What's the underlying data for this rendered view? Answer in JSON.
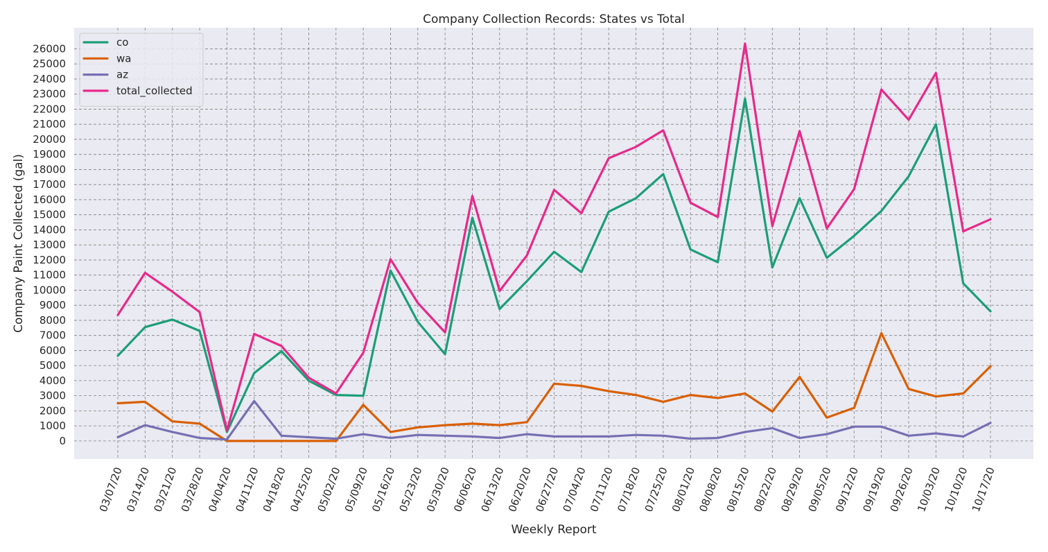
{
  "chart_data": {
    "type": "line",
    "title": "Company Collection Records: States vs Total",
    "xlabel": "Weekly Report",
    "ylabel": "Company Paint Collected (gal)",
    "ylim": [
      -1200,
      27400
    ],
    "y_ticks": [
      0,
      1000,
      2000,
      3000,
      4000,
      5000,
      6000,
      7000,
      8000,
      9000,
      10000,
      11000,
      12000,
      13000,
      14000,
      15000,
      16000,
      17000,
      18000,
      19000,
      20000,
      21000,
      22000,
      23000,
      24000,
      25000,
      26000
    ],
    "grid": true,
    "legend_position": "upper-left",
    "categories": [
      "03/07/20",
      "03/14/20",
      "03/21/20",
      "03/28/20",
      "04/04/20",
      "04/11/20",
      "04/18/20",
      "04/25/20",
      "05/02/20",
      "05/09/20",
      "05/16/20",
      "05/23/20",
      "05/30/20",
      "06/06/20",
      "06/13/20",
      "06/20/20",
      "06/27/20",
      "07/04/20",
      "07/11/20",
      "07/18/20",
      "07/25/20",
      "08/01/20",
      "08/08/20",
      "08/15/20",
      "08/22/20",
      "08/29/20",
      "09/05/20",
      "09/12/20",
      "09/19/20",
      "09/26/20",
      "10/03/20",
      "10/10/20",
      "10/17/20"
    ],
    "series": [
      {
        "name": "co",
        "color": "#1b9e77",
        "values": [
          5650,
          7550,
          8050,
          7300,
          600,
          4500,
          5950,
          4000,
          3050,
          3000,
          11300,
          7900,
          5750,
          14800,
          8750,
          10600,
          12550,
          11200,
          15200,
          16100,
          17700,
          12700,
          11850,
          22700,
          11500,
          16100,
          12150,
          13600,
          15250,
          17550,
          21000,
          10450,
          8600
        ]
      },
      {
        "name": "wa",
        "color": "#d95f02",
        "values": [
          2500,
          2600,
          1300,
          1150,
          0,
          0,
          0,
          0,
          0,
          2400,
          600,
          900,
          1050,
          1150,
          1050,
          1250,
          3800,
          3650,
          3300,
          3050,
          2600,
          3050,
          2850,
          3150,
          1950,
          4250,
          1550,
          2200,
          7150,
          3450,
          2950,
          3150,
          4950
        ]
      },
      {
        "name": "az",
        "color": "#7570b3",
        "values": [
          250,
          1050,
          600,
          200,
          100,
          2650,
          350,
          250,
          150,
          450,
          200,
          400,
          350,
          300,
          200,
          450,
          300,
          300,
          300,
          400,
          350,
          150,
          200,
          600,
          850,
          200,
          450,
          950,
          950,
          350,
          500,
          300,
          1200
        ]
      },
      {
        "name": "total_collected",
        "color": "#e7298a",
        "values": [
          8350,
          11150,
          9900,
          8550,
          700,
          7100,
          6300,
          4200,
          3150,
          5850,
          12050,
          9150,
          7200,
          16250,
          9950,
          12300,
          16650,
          15100,
          18750,
          19500,
          20600,
          15800,
          14850,
          26350,
          14250,
          20550,
          14100,
          16700,
          23300,
          21300,
          24400,
          13900,
          14700
        ]
      }
    ]
  }
}
